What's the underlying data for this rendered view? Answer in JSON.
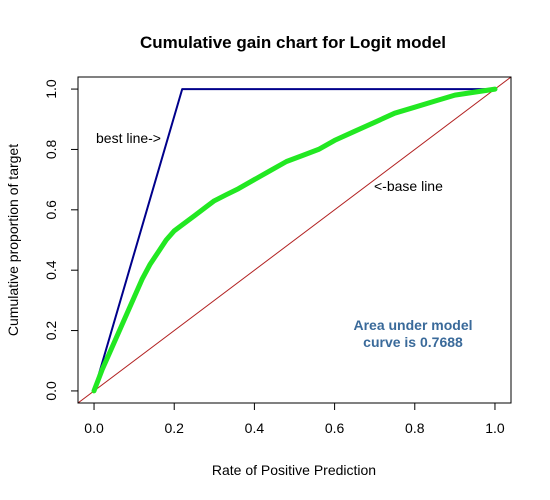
{
  "chart_data": {
    "type": "line",
    "title": "Cumulative gain chart for Logit model",
    "xlabel": "Rate of Positive Prediction",
    "ylabel": "Cumulative proportion of target",
    "xlim": [
      -0.04,
      1.04
    ],
    "ylim": [
      -0.04,
      1.04
    ],
    "x_ticks": [
      "0.0",
      "0.2",
      "0.4",
      "0.6",
      "0.8",
      "1.0"
    ],
    "y_ticks": [
      "0.0",
      "0.2",
      "0.4",
      "0.6",
      "0.8",
      "1.0"
    ],
    "grid": false,
    "series": [
      {
        "key": "best",
        "color": "#00008b",
        "points": [
          [
            0,
            0
          ],
          [
            0.22,
            1.0
          ],
          [
            1.0,
            1.0
          ]
        ]
      },
      {
        "key": "base",
        "color": "#b22222",
        "points": [
          [
            -0.04,
            -0.04
          ],
          [
            1.04,
            1.04
          ]
        ]
      },
      {
        "key": "model",
        "color": "#22e822",
        "points": [
          [
            0.0,
            0.0
          ],
          [
            0.02,
            0.07
          ],
          [
            0.04,
            0.13
          ],
          [
            0.06,
            0.19
          ],
          [
            0.08,
            0.25
          ],
          [
            0.1,
            0.31
          ],
          [
            0.12,
            0.37
          ],
          [
            0.14,
            0.42
          ],
          [
            0.16,
            0.46
          ],
          [
            0.18,
            0.5
          ],
          [
            0.2,
            0.53
          ],
          [
            0.22,
            0.55
          ],
          [
            0.25,
            0.58
          ],
          [
            0.28,
            0.61
          ],
          [
            0.3,
            0.63
          ],
          [
            0.33,
            0.65
          ],
          [
            0.36,
            0.67
          ],
          [
            0.4,
            0.7
          ],
          [
            0.44,
            0.73
          ],
          [
            0.48,
            0.76
          ],
          [
            0.52,
            0.78
          ],
          [
            0.56,
            0.8
          ],
          [
            0.6,
            0.83
          ],
          [
            0.65,
            0.86
          ],
          [
            0.7,
            0.89
          ],
          [
            0.75,
            0.92
          ],
          [
            0.8,
            0.94
          ],
          [
            0.85,
            0.96
          ],
          [
            0.9,
            0.98
          ],
          [
            0.95,
            0.99
          ],
          [
            1.0,
            1.0
          ]
        ]
      }
    ],
    "annotations": {
      "best_line": "best line->",
      "base_line": "<-base line",
      "auc_line1": "Area under model",
      "auc_line2": "curve is 0.7688",
      "auc_color": "#3a6a9a"
    }
  }
}
